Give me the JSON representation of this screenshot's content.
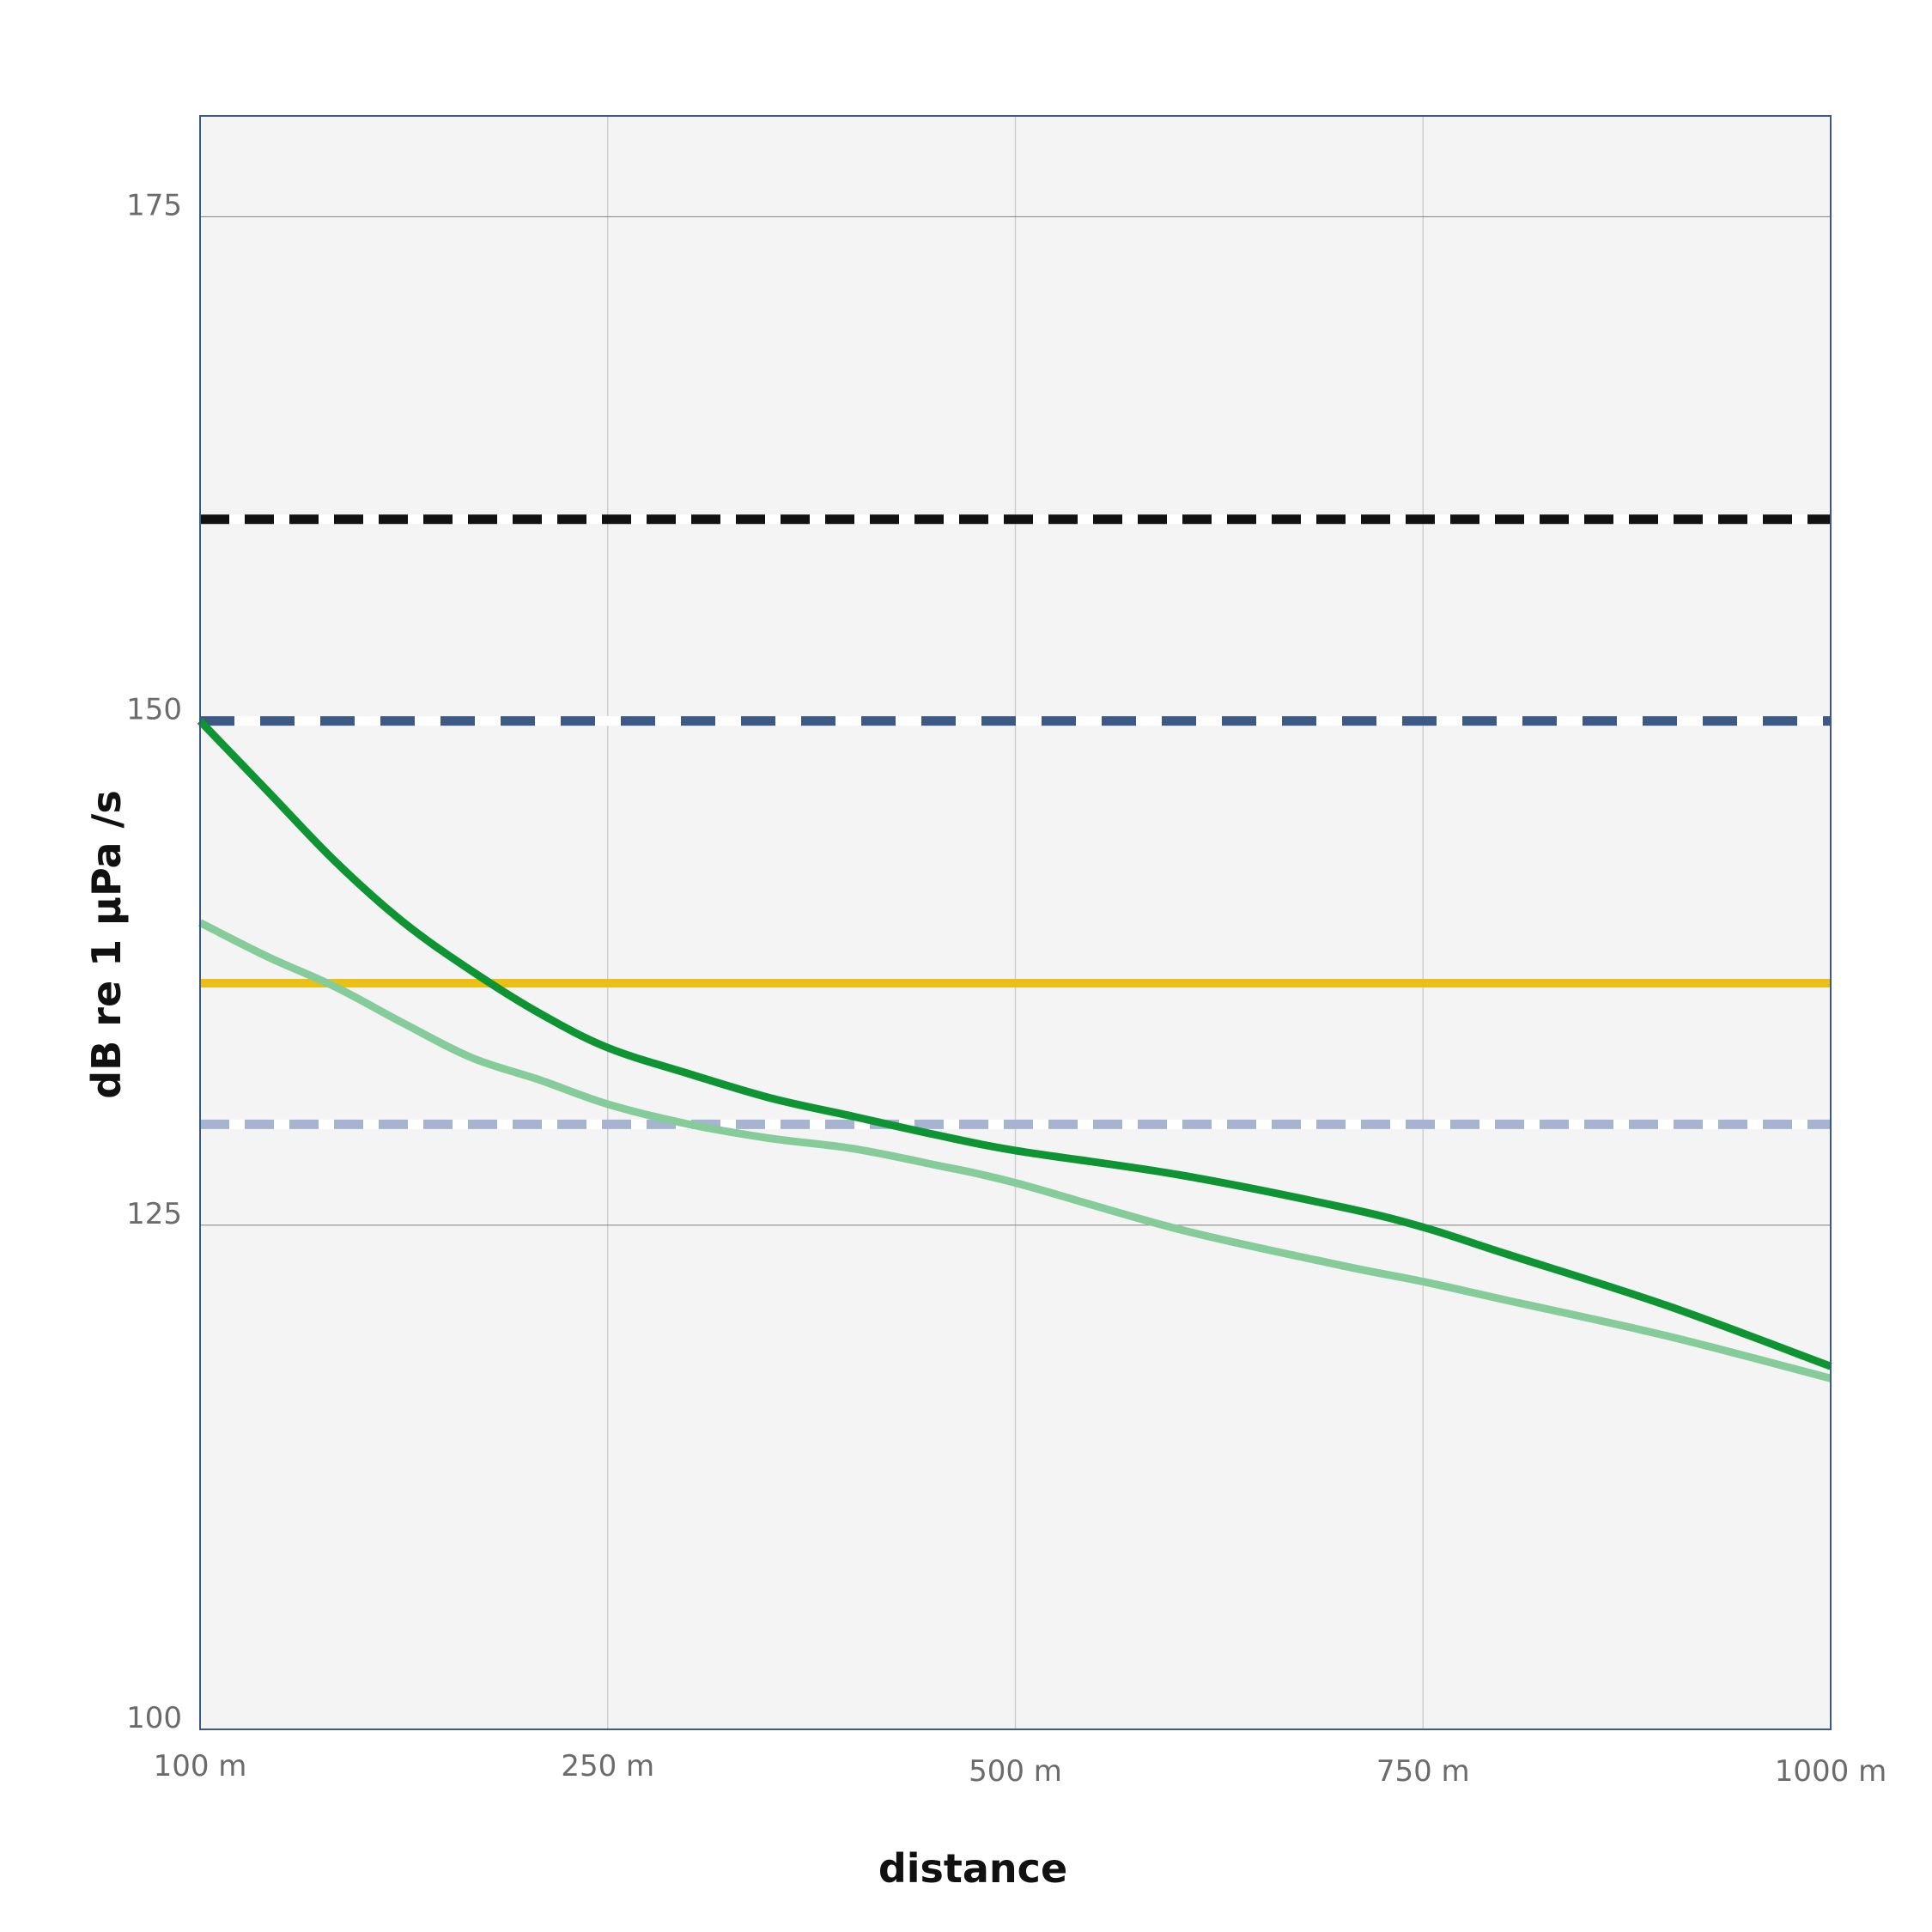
{
  "chart_data": {
    "type": "line",
    "title": "",
    "xlabel": "distance",
    "ylabel": "dB re 1 μPa /s",
    "x_ticks": [
      "100 m",
      "250 m",
      "500 m",
      "750 m",
      "1000 m"
    ],
    "y_ticks": [
      "100",
      "125",
      "150",
      "175"
    ],
    "y_tick_values": [
      100,
      125,
      150,
      175
    ],
    "ylim": [
      100,
      180
    ],
    "grid": true,
    "background": "#f4f4f4",
    "series": [
      {
        "kind": "curve",
        "color": "#0e9433",
        "points": [
          [
            "100 m",
            150
          ],
          [
            "125 m",
            146.5
          ],
          [
            "150 m",
            143
          ],
          [
            "175 m",
            140
          ],
          [
            "200 m",
            137.6
          ],
          [
            "225 m",
            135.5
          ],
          [
            "250 m",
            133.8
          ],
          [
            "300 m",
            132.5
          ],
          [
            "350 m",
            131.3
          ],
          [
            "400 m",
            130.4
          ],
          [
            "450 m",
            129.5
          ],
          [
            "500 m",
            128.7
          ],
          [
            "600 m",
            127.5
          ],
          [
            "700 m",
            125.9
          ],
          [
            "750 m",
            124.9
          ],
          [
            "800 m",
            123.6
          ],
          [
            "900 m",
            121
          ],
          [
            "1000 m",
            118
          ]
        ]
      },
      {
        "kind": "curve",
        "color": "#86cc9a",
        "points": [
          [
            "100 m",
            140
          ],
          [
            "125 m",
            138.3
          ],
          [
            "150 m",
            136.8
          ],
          [
            "175 m",
            135
          ],
          [
            "200 m",
            133.3
          ],
          [
            "225 m",
            132.2
          ],
          [
            "250 m",
            131
          ],
          [
            "300 m",
            130
          ],
          [
            "350 m",
            129.3
          ],
          [
            "400 m",
            128.8
          ],
          [
            "450 m",
            128
          ],
          [
            "500 m",
            127.1
          ],
          [
            "600 m",
            124.8
          ],
          [
            "700 m",
            123
          ],
          [
            "750 m",
            122.2
          ],
          [
            "800 m",
            121.3
          ],
          [
            "900 m",
            119.5
          ],
          [
            "1000 m",
            117.4
          ]
        ]
      },
      {
        "kind": "threshold",
        "value": 160,
        "color": "#111111",
        "dash": "dashed"
      },
      {
        "kind": "threshold",
        "value": 150,
        "color": "#3c5a85",
        "dash": "long-dashed"
      },
      {
        "kind": "threshold",
        "value": 137,
        "color": "#ebbf13",
        "dash": "solid"
      },
      {
        "kind": "threshold",
        "value": 130,
        "color": "#a6b3d1",
        "dash": "dashed"
      }
    ]
  }
}
